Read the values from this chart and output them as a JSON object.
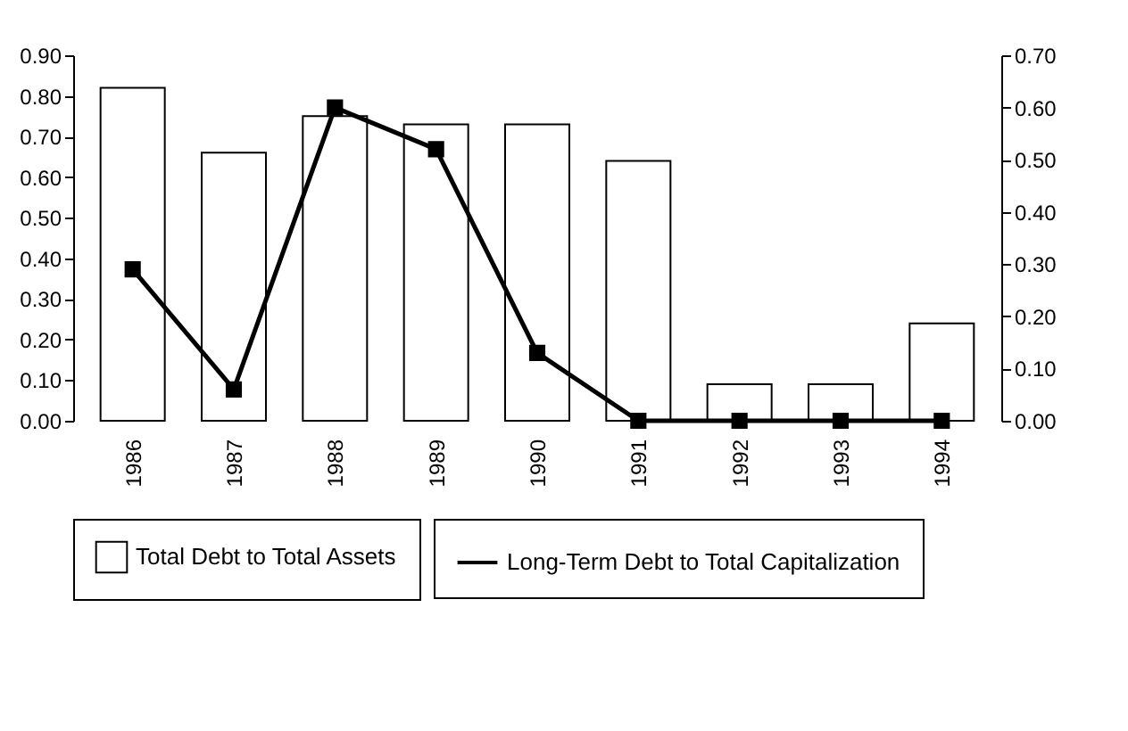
{
  "chart_data": {
    "type": "bar",
    "categories": [
      "1986",
      "1987",
      "1988",
      "1989",
      "1990",
      "1991",
      "1992",
      "1993",
      "1994"
    ],
    "series": [
      {
        "name": "Total Debt to Total Assets",
        "color": "#ffffff",
        "values": [
          0.82,
          0.66,
          0.75,
          0.73,
          0.73,
          0.64,
          0.09,
          0.09,
          0.24
        ]
      },
      {
        "name": "Long-Term Debt to Total Capitalization",
        "type": "line",
        "axis": "y2",
        "color": "#000000",
        "marker": "square",
        "values": [
          0.29,
          0.06,
          0.6,
          0.52,
          0.13,
          0.0,
          0.0,
          0.0,
          0.0
        ]
      }
    ],
    "ylim": [
      0,
      0.9
    ],
    "yticks": [
      {
        "value": 0,
        "label": "0.00"
      },
      {
        "value": 0.1,
        "label": "0.10"
      },
      {
        "value": 0.2,
        "label": "0.20"
      },
      {
        "value": 0.3,
        "label": "0.30"
      },
      {
        "value": 0.4,
        "label": "0.40"
      },
      {
        "value": 0.5,
        "label": "0.50"
      },
      {
        "value": 0.6,
        "label": "0.60"
      },
      {
        "value": 0.7,
        "label": "0.70"
      },
      {
        "value": 0.8,
        "label": "0.80"
      },
      {
        "value": 0.9,
        "label": "0.90"
      }
    ],
    "y2lim": [
      0,
      0.7
    ],
    "y2ticks": [
      {
        "value": 0,
        "label": "0.00"
      },
      {
        "value": 0.1,
        "label": "0.10"
      },
      {
        "value": 0.2,
        "label": "0.20"
      },
      {
        "value": 0.3,
        "label": "0.30"
      },
      {
        "value": 0.4,
        "label": "0.40"
      },
      {
        "value": 0.5,
        "label": "0.50"
      },
      {
        "value": 0.6,
        "label": "0.60"
      },
      {
        "value": 0.7,
        "label": "0.70"
      }
    ],
    "grid": false,
    "legend": "bottom",
    "line_style": "solid"
  }
}
